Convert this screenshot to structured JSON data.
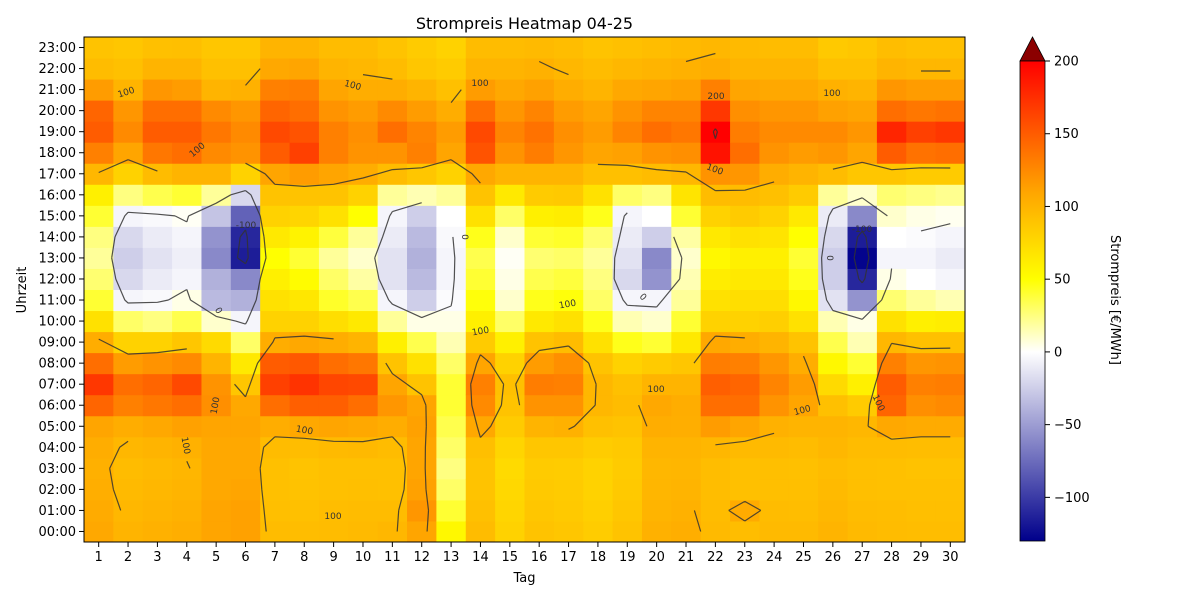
{
  "chart_data": {
    "type": "heatmap",
    "title": "Strompreis Heatmap 04-25",
    "xlabel": "Tag",
    "ylabel": "Uhrzeit",
    "colorbar_label": "Strompreis [€/MWh]",
    "x": [
      1,
      2,
      3,
      4,
      5,
      6,
      7,
      8,
      9,
      10,
      11,
      12,
      13,
      14,
      15,
      16,
      17,
      18,
      19,
      20,
      21,
      22,
      23,
      24,
      25,
      26,
      27,
      28,
      29,
      30
    ],
    "x_tick_labels": [
      "1",
      "2",
      "3",
      "4",
      "5",
      "6",
      "7",
      "8",
      "9",
      "10",
      "11",
      "12",
      "13",
      "14",
      "15",
      "16",
      "17",
      "18",
      "19",
      "20",
      "21",
      "22",
      "23",
      "24",
      "25",
      "26",
      "27",
      "28",
      "29",
      "30"
    ],
    "y_tick_labels": [
      "00:00",
      "01:00",
      "02:00",
      "03:00",
      "04:00",
      "05:00",
      "06:00",
      "07:00",
      "08:00",
      "09:00",
      "10:00",
      "11:00",
      "12:00",
      "13:00",
      "14:00",
      "15:00",
      "16:00",
      "17:00",
      "18:00",
      "19:00",
      "20:00",
      "21:00",
      "22:00",
      "23:00"
    ],
    "colorbar_ticks": [
      -100,
      -50,
      0,
      50,
      100,
      150,
      200
    ],
    "colorbar_tick_labels": [
      "−100",
      "−50",
      "0",
      "50",
      "100",
      "150",
      "200"
    ],
    "vmin": -130,
    "vmax": 200,
    "colorscale": [
      "#00008b",
      "#ffffff",
      "#ffff00",
      "#ffa500",
      "#ff0000"
    ],
    "colorbar_extend_color": "#8b0000",
    "contour_levels": [
      -100,
      0,
      100,
      200
    ],
    "contour_label_texts": [
      "100",
      "100",
      "100",
      "100",
      "100",
      "100",
      "100",
      "100",
      "100",
      "100",
      "100",
      "100",
      "100",
      "100",
      "100",
      "200",
      "-100",
      "-100",
      "0",
      "0",
      "0",
      "0"
    ],
    "rows_by_day": [
      [
        108,
        106,
        104,
        103,
        105,
        110,
        145,
        170,
        140,
        105,
        70,
        40,
        28,
        20,
        25,
        40,
        60,
        98,
        130,
        150,
        145,
        115,
        95,
        90
      ],
      [
        100,
        98,
        96,
        95,
        98,
        105,
        130,
        140,
        115,
        80,
        30,
        -5,
        -20,
        -25,
        -20,
        -5,
        25,
        80,
        110,
        125,
        118,
        100,
        92,
        88
      ],
      [
        102,
        100,
        98,
        97,
        100,
        108,
        135,
        145,
        120,
        80,
        25,
        -3,
        -10,
        -15,
        -10,
        -3,
        35,
        95,
        135,
        150,
        140,
        118,
        100,
        92
      ],
      [
        104,
        102,
        100,
        99,
        102,
        112,
        140,
        160,
        125,
        88,
        35,
        5,
        -5,
        -8,
        -5,
        2,
        40,
        100,
        140,
        150,
        140,
        115,
        100,
        93
      ],
      [
        110,
        110,
        108,
        108,
        108,
        110,
        122,
        120,
        100,
        75,
        10,
        -35,
        -40,
        -60,
        -55,
        -30,
        20,
        100,
        125,
        135,
        125,
        100,
        92,
        88
      ],
      [
        112,
        112,
        110,
        108,
        108,
        110,
        108,
        88,
        65,
        30,
        -5,
        -40,
        -60,
        -115,
        -110,
        -80,
        -20,
        80,
        120,
        125,
        118,
        102,
        92,
        88
      ],
      [
        95,
        93,
        92,
        92,
        95,
        105,
        140,
        165,
        150,
        105,
        80,
        70,
        60,
        50,
        65,
        80,
        90,
        110,
        150,
        160,
        145,
        130,
        108,
        100
      ],
      [
        94,
        92,
        91,
        90,
        94,
        108,
        148,
        172,
        152,
        108,
        80,
        66,
        52,
        40,
        58,
        78,
        90,
        115,
        165,
        155,
        140,
        132,
        110,
        100
      ],
      [
        95,
        94,
        92,
        92,
        96,
        110,
        148,
        162,
        140,
        105,
        72,
        42,
        30,
        20,
        38,
        70,
        90,
        110,
        130,
        130,
        120,
        110,
        100,
        95
      ],
      [
        96,
        95,
        93,
        92,
        97,
        108,
        140,
        160,
        135,
        100,
        65,
        35,
        18,
        10,
        20,
        50,
        80,
        105,
        120,
        122,
        115,
        105,
        98,
        95
      ],
      [
        98,
        95,
        92,
        92,
        95,
        105,
        118,
        110,
        90,
        60,
        20,
        -5,
        -15,
        -15,
        -10,
        -5,
        20,
        95,
        120,
        140,
        125,
        105,
        95,
        90
      ],
      [
        110,
        118,
        112,
        110,
        110,
        112,
        110,
        90,
        70,
        35,
        5,
        -25,
        -35,
        -40,
        -35,
        -25,
        15,
        88,
        130,
        128,
        115,
        100,
        88,
        85
      ],
      [
        55,
        40,
        30,
        25,
        30,
        35,
        40,
        40,
        30,
        15,
        5,
        -2,
        -5,
        -5,
        -3,
        0,
        20,
        80,
        110,
        115,
        105,
        92,
        85,
        80
      ],
      [
        95,
        92,
        90,
        90,
        93,
        108,
        125,
        130,
        110,
        85,
        60,
        48,
        40,
        35,
        45,
        70,
        90,
        108,
        155,
        160,
        140,
        115,
        100,
        95
      ],
      [
        80,
        78,
        76,
        75,
        78,
        85,
        90,
        92,
        80,
        60,
        30,
        10,
        5,
        2,
        10,
        30,
        65,
        100,
        120,
        128,
        118,
        108,
        100,
        95
      ],
      [
        90,
        88,
        86,
        85,
        88,
        100,
        120,
        132,
        115,
        90,
        65,
        45,
        35,
        28,
        40,
        60,
        85,
        100,
        132,
        138,
        128,
        112,
        102,
        96
      ],
      [
        88,
        86,
        85,
        84,
        88,
        102,
        120,
        130,
        122,
        95,
        70,
        48,
        38,
        30,
        42,
        62,
        86,
        100,
        118,
        122,
        115,
        105,
        98,
        94
      ],
      [
        84,
        82,
        80,
        80,
        84,
        92,
        98,
        98,
        90,
        70,
        45,
        30,
        25,
        20,
        28,
        45,
        70,
        92,
        110,
        115,
        110,
        100,
        95,
        90
      ],
      [
        90,
        88,
        86,
        85,
        86,
        90,
        95,
        92,
        80,
        45,
        15,
        -5,
        -20,
        -15,
        -10,
        -5,
        30,
        92,
        112,
        128,
        120,
        108,
        98,
        92
      ],
      [
        102,
        100,
        99,
        98,
        100,
        105,
        108,
        100,
        85,
        40,
        10,
        -5,
        -55,
        -60,
        -25,
        0,
        25,
        95,
        120,
        140,
        128,
        110,
        100,
        94
      ],
      [
        104,
        102,
        100,
        99,
        100,
        104,
        105,
        100,
        88,
        65,
        40,
        20,
        15,
        10,
        18,
        40,
        68,
        98,
        122,
        135,
        128,
        112,
        102,
        96
      ],
      [
        96,
        95,
        94,
        94,
        98,
        115,
        140,
        148,
        132,
        108,
        80,
        70,
        62,
        55,
        65,
        80,
        95,
        120,
        190,
        205,
        170,
        130,
        105,
        98
      ],
      [
        94,
        106,
        92,
        92,
        96,
        110,
        140,
        145,
        130,
        105,
        80,
        72,
        65,
        60,
        70,
        85,
        95,
        118,
        140,
        132,
        122,
        110,
        100,
        96
      ],
      [
        96,
        95,
        93,
        93,
        96,
        102,
        120,
        128,
        118,
        100,
        82,
        72,
        65,
        60,
        68,
        80,
        92,
        105,
        120,
        125,
        118,
        108,
        100,
        95
      ],
      [
        96,
        94,
        93,
        92,
        95,
        100,
        110,
        115,
        105,
        90,
        70,
        55,
        45,
        40,
        50,
        65,
        85,
        100,
        115,
        125,
        118,
        108,
        100,
        95
      ],
      [
        100,
        98,
        96,
        95,
        98,
        100,
        92,
        75,
        55,
        35,
        15,
        -15,
        -25,
        -25,
        -20,
        -10,
        20,
        95,
        118,
        125,
        112,
        102,
        92,
        86
      ],
      [
        96,
        95,
        93,
        93,
        95,
        98,
        85,
        60,
        40,
        15,
        5,
        -55,
        -110,
        -128,
        -115,
        -60,
        10,
        88,
        110,
        118,
        110,
        100,
        92,
        88
      ],
      [
        95,
        94,
        92,
        92,
        95,
        108,
        145,
        150,
        130,
        98,
        70,
        28,
        5,
        -5,
        0,
        10,
        28,
        88,
        150,
        180,
        140,
        118,
        100,
        94
      ],
      [
        94,
        93,
        92,
        91,
        94,
        106,
        122,
        130,
        118,
        92,
        60,
        20,
        0,
        -5,
        -2,
        5,
        25,
        85,
        138,
        165,
        135,
        115,
        98,
        92
      ],
      [
        94,
        93,
        92,
        91,
        94,
        106,
        125,
        132,
        120,
        92,
        62,
        15,
        -5,
        -10,
        -5,
        3,
        22,
        85,
        140,
        170,
        138,
        115,
        98,
        92
      ]
    ]
  }
}
